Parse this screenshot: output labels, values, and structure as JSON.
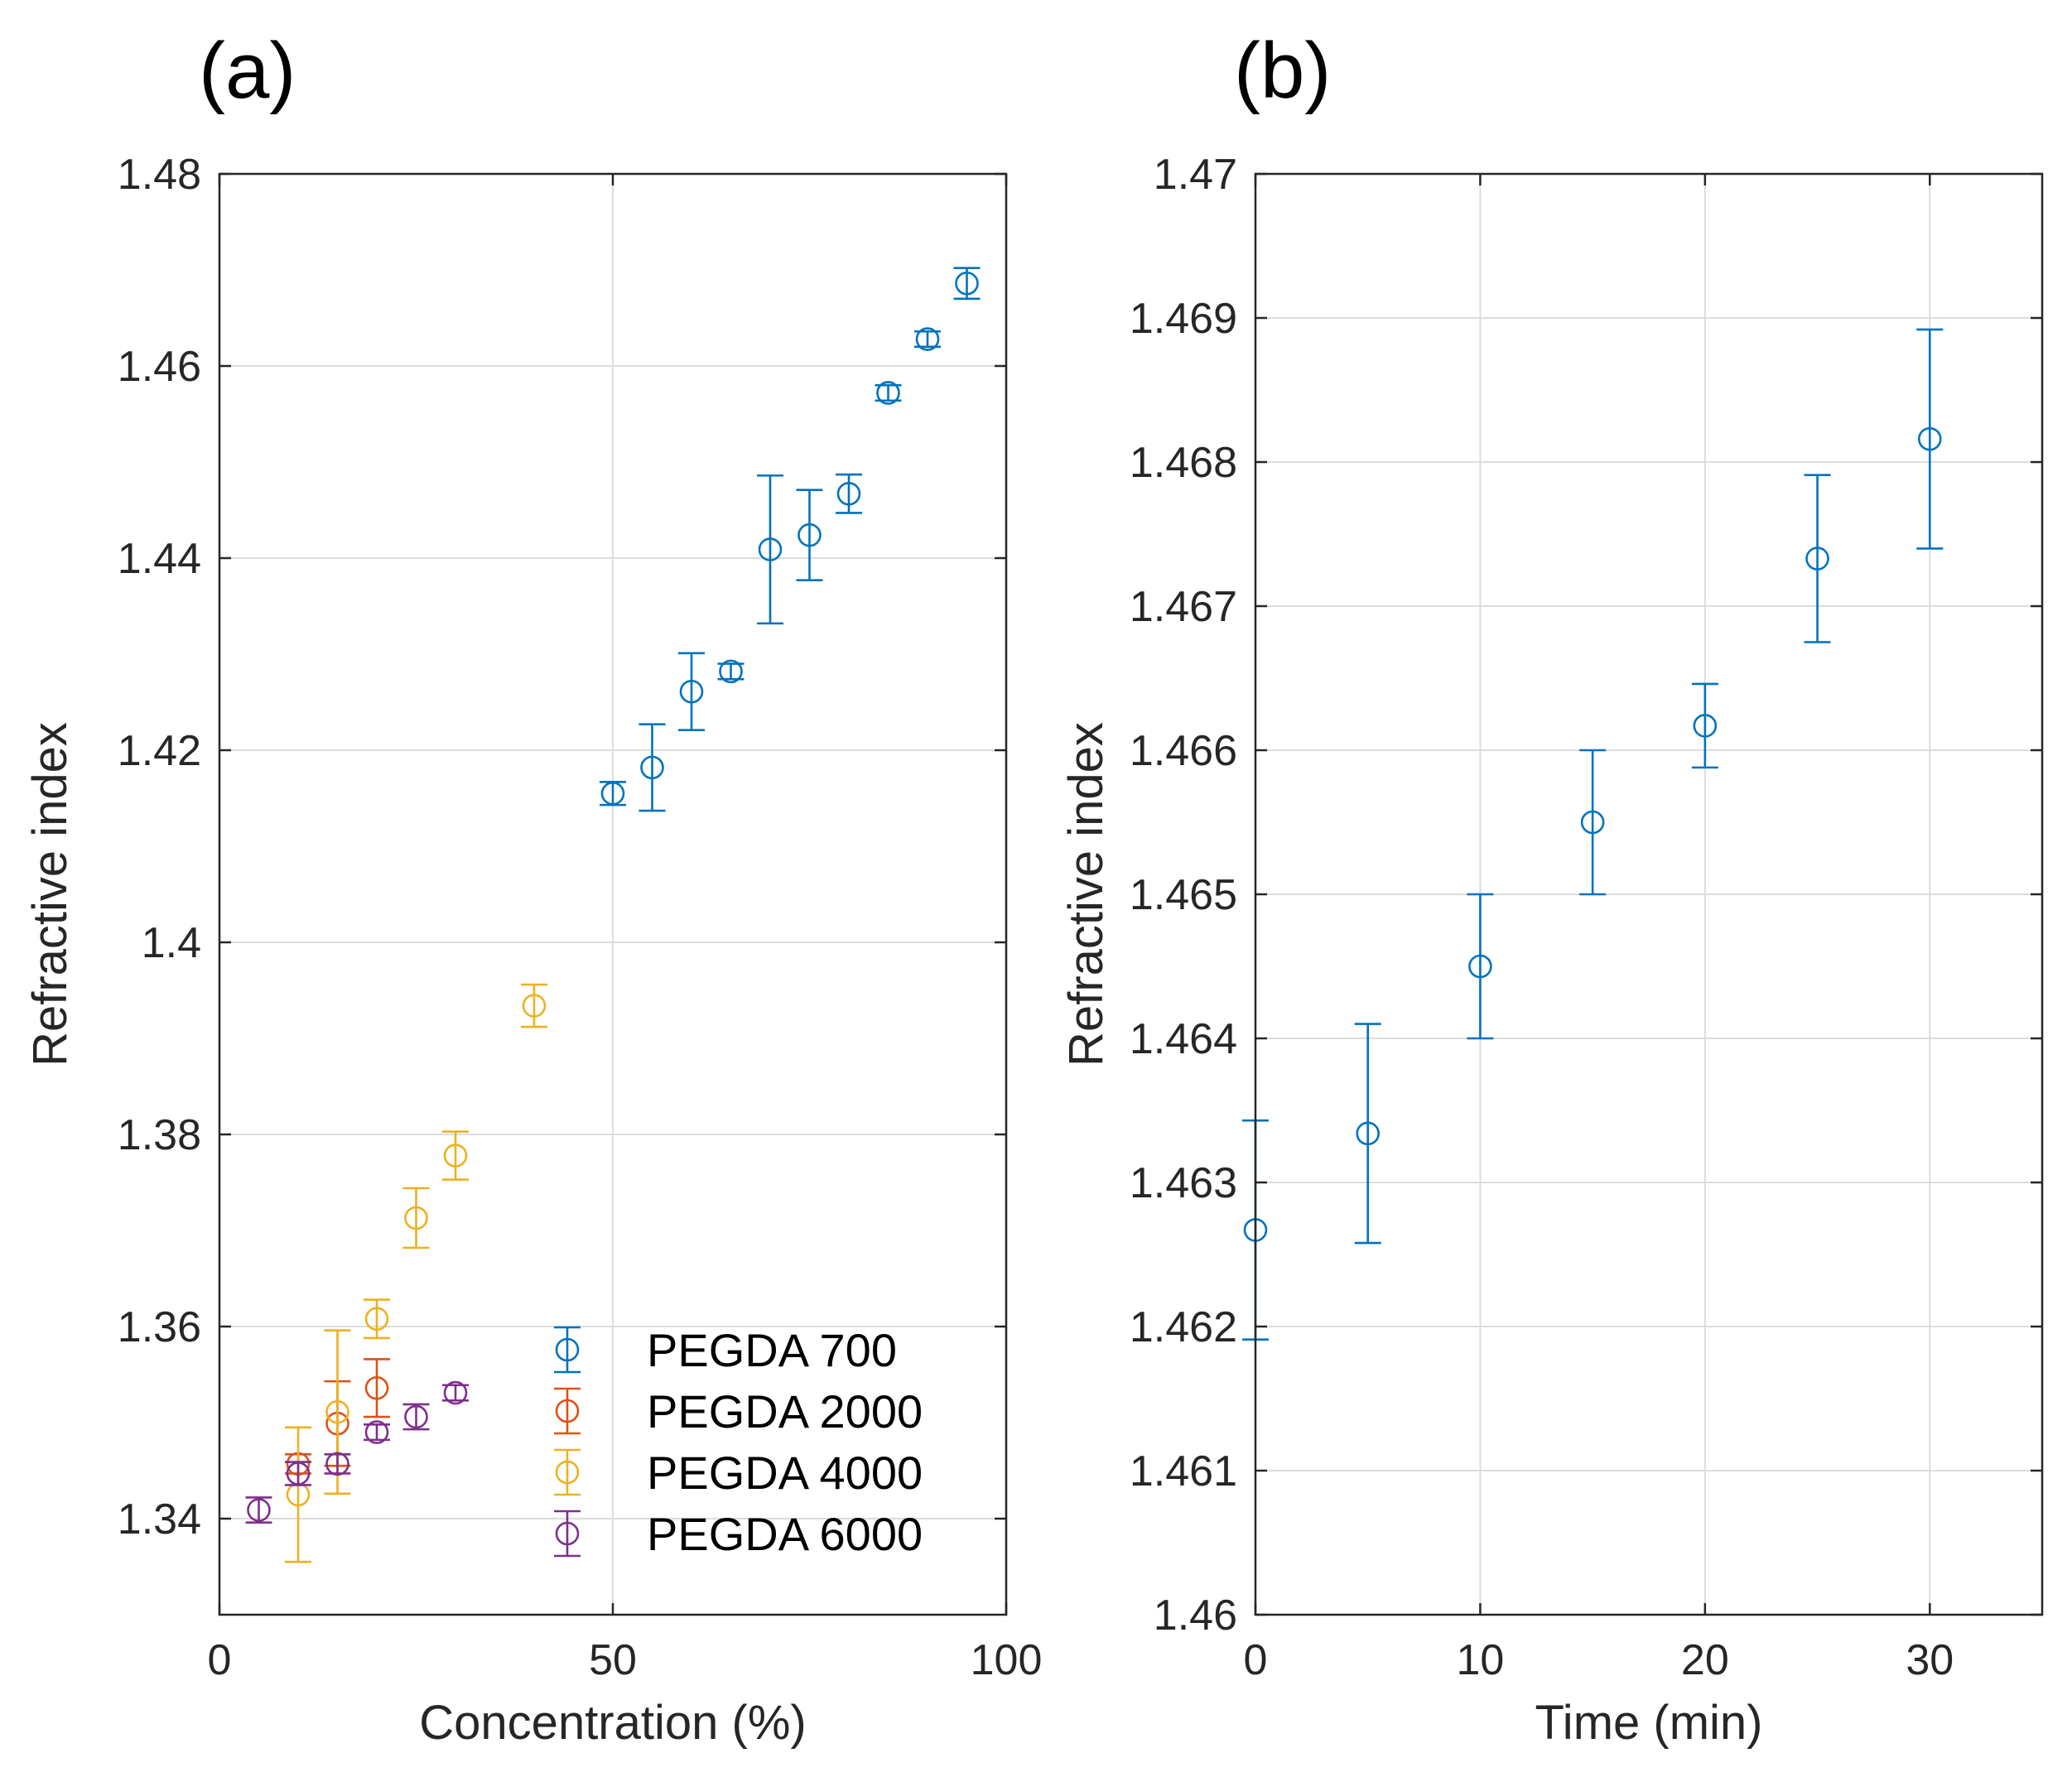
{
  "chart_data": [
    {
      "panel_label": "(a)",
      "type": "scatter",
      "xlabel": "Concentration (%)",
      "ylabel": "Refractive index",
      "xlim": [
        0,
        100
      ],
      "ylim": [
        1.33,
        1.48
      ],
      "xticks": [
        0,
        50,
        100
      ],
      "xtick_labels": [
        "0",
        "50",
        "100"
      ],
      "yticks": [
        1.34,
        1.36,
        1.38,
        1.4,
        1.42,
        1.44,
        1.46,
        1.48
      ],
      "ytick_labels": [
        "1.34",
        "1.36",
        "1.38",
        "1.4",
        "1.42",
        "1.44",
        "1.46",
        "1.48"
      ],
      "grid": true,
      "legend_position": "bottom-right",
      "error_bars": true,
      "marker": "open-circle",
      "series": [
        {
          "name": "PEGDA 700",
          "color": "#0072BD",
          "points": [
            {
              "x": 50,
              "y": 1.4155,
              "err": 0.0012
            },
            {
              "x": 55,
              "y": 1.4182,
              "err": 0.0045
            },
            {
              "x": 60,
              "y": 1.4261,
              "err": 0.004
            },
            {
              "x": 65,
              "y": 1.4282,
              "err": 0.0008
            },
            {
              "x": 70,
              "y": 1.4409,
              "err": 0.0077
            },
            {
              "x": 75,
              "y": 1.4424,
              "err": 0.0047
            },
            {
              "x": 80,
              "y": 1.4467,
              "err": 0.002
            },
            {
              "x": 85,
              "y": 1.4572,
              "err": 0.0008
            },
            {
              "x": 90,
              "y": 1.4628,
              "err": 0.0008
            },
            {
              "x": 95,
              "y": 1.4686,
              "err": 0.0016
            }
          ]
        },
        {
          "name": "PEGDA 2000",
          "color": "#D95319",
          "points": [
            {
              "x": 10,
              "y": 1.3457,
              "err": 0.001
            },
            {
              "x": 15,
              "y": 1.3499,
              "err": 0.0044
            },
            {
              "x": 20,
              "y": 1.3536,
              "err": 0.003
            }
          ]
        },
        {
          "name": "PEGDA 4000",
          "color": "#EDB120",
          "points": [
            {
              "x": 10,
              "y": 1.3425,
              "err": 0.007
            },
            {
              "x": 15,
              "y": 1.3511,
              "err": 0.0085
            },
            {
              "x": 20,
              "y": 1.3608,
              "err": 0.002
            },
            {
              "x": 25,
              "y": 1.3713,
              "err": 0.0031
            },
            {
              "x": 30,
              "y": 1.3778,
              "err": 0.0025
            },
            {
              "x": 40,
              "y": 1.3934,
              "err": 0.0022
            }
          ]
        },
        {
          "name": "PEGDA 6000",
          "color": "#7E2F8E",
          "points": [
            {
              "x": 5,
              "y": 1.3409,
              "err": 0.0013
            },
            {
              "x": 10,
              "y": 1.3447,
              "err": 0.0012
            },
            {
              "x": 15,
              "y": 1.3457,
              "err": 0.001
            },
            {
              "x": 20,
              "y": 1.349,
              "err": 0.0008
            },
            {
              "x": 25,
              "y": 1.3506,
              "err": 0.0013
            },
            {
              "x": 30,
              "y": 1.3531,
              "err": 0.0008
            }
          ]
        }
      ]
    },
    {
      "panel_label": "(b)",
      "type": "scatter",
      "xlabel": "Time (min)",
      "ylabel": "Refractive index",
      "xlim": [
        0,
        35
      ],
      "ylim": [
        1.46,
        1.47
      ],
      "xticks": [
        0,
        10,
        20,
        30
      ],
      "xtick_labels": [
        "0",
        "10",
        "20",
        "30"
      ],
      "yticks": [
        1.46,
        1.461,
        1.462,
        1.463,
        1.464,
        1.465,
        1.466,
        1.467,
        1.468,
        1.469,
        1.47
      ],
      "ytick_labels": [
        "1.46",
        "1.461",
        "1.462",
        "1.463",
        "1.464",
        "1.465",
        "1.466",
        "1.467",
        "1.468",
        "1.469",
        "1.47"
      ],
      "grid": true,
      "error_bars": true,
      "marker": "open-circle",
      "series": [
        {
          "color": "#0072BD",
          "points": [
            {
              "x": 0,
              "y": 1.46267,
              "err": 0.00076
            },
            {
              "x": 5,
              "y": 1.46334,
              "err": 0.00076
            },
            {
              "x": 10,
              "y": 1.4645,
              "err": 0.0005
            },
            {
              "x": 15,
              "y": 1.4655,
              "err": 0.0005
            },
            {
              "x": 20,
              "y": 1.46617,
              "err": 0.00029
            },
            {
              "x": 25,
              "y": 1.46733,
              "err": 0.00058
            },
            {
              "x": 30,
              "y": 1.46816,
              "err": 0.00076
            }
          ]
        }
      ]
    }
  ]
}
